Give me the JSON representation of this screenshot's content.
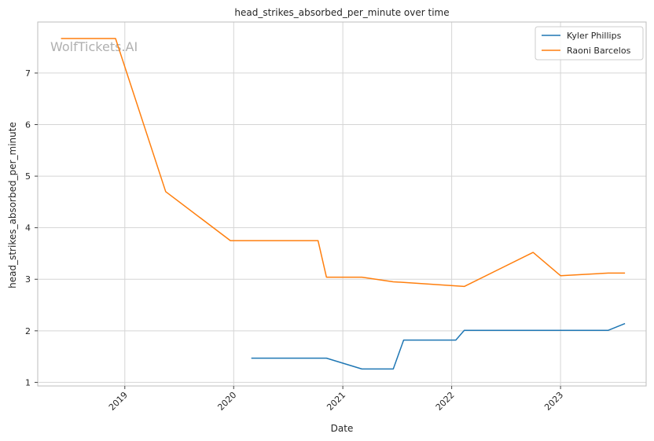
{
  "chart_data": {
    "type": "line",
    "title": "head_strikes_absorbed_per_minute over time",
    "xlabel": "Date",
    "ylabel": "head_strikes_absorbed_per_minute",
    "xlim": [
      "2018-03-15",
      "2023-10-15"
    ],
    "ylim": [
      0.93,
      7.99
    ],
    "x_ticks": [
      "2019-01-01",
      "2020-01-01",
      "2021-01-01",
      "2022-01-01",
      "2023-01-01"
    ],
    "x_tick_labels": [
      "2019",
      "2020",
      "2021",
      "2022",
      "2023"
    ],
    "y_ticks": [
      1,
      2,
      3,
      4,
      5,
      6,
      7
    ],
    "y_tick_labels": [
      "1",
      "2",
      "3",
      "4",
      "5",
      "6",
      "7"
    ],
    "grid": true,
    "legend_position": "top-right",
    "watermark": "WolfTickets.AI",
    "series": [
      {
        "name": "Kyler Phillips",
        "color": "#1f77b4",
        "points": [
          [
            "2020-02-29",
            1.47
          ],
          [
            "2020-11-07",
            1.47
          ],
          [
            "2021-03-06",
            1.26
          ],
          [
            "2021-06-19",
            1.26
          ],
          [
            "2021-07-24",
            1.82
          ],
          [
            "2022-01-15",
            1.82
          ],
          [
            "2022-02-12",
            2.01
          ],
          [
            "2023-06-10",
            2.01
          ],
          [
            "2023-08-05",
            2.14
          ]
        ]
      },
      {
        "name": "Raoni Barcelos",
        "color": "#ff7f0e",
        "points": [
          [
            "2018-06-01",
            7.67
          ],
          [
            "2018-12-01",
            7.67
          ],
          [
            "2019-05-18",
            4.7
          ],
          [
            "2019-12-21",
            3.75
          ],
          [
            "2020-10-10",
            3.75
          ],
          [
            "2020-11-07",
            3.04
          ],
          [
            "2021-03-06",
            3.04
          ],
          [
            "2021-06-19",
            2.95
          ],
          [
            "2021-07-24",
            2.94
          ],
          [
            "2022-02-12",
            2.86
          ],
          [
            "2022-10-01",
            3.52
          ],
          [
            "2023-01-01",
            3.07
          ],
          [
            "2023-06-10",
            3.12
          ],
          [
            "2023-08-05",
            3.12
          ]
        ]
      }
    ]
  }
}
